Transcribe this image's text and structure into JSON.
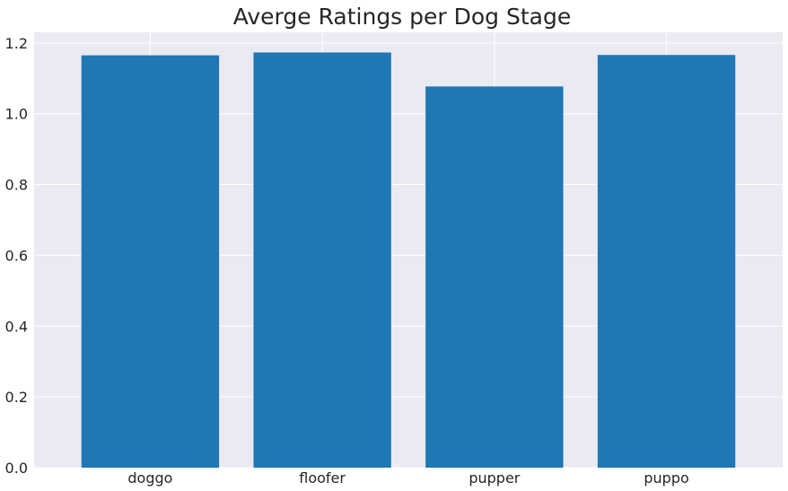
{
  "chart_data": {
    "type": "bar",
    "title": "Averge Ratings per Dog Stage",
    "xlabel": "",
    "ylabel": "",
    "categories": [
      "doggo",
      "floofer",
      "pupper",
      "puppo"
    ],
    "values": [
      1.165,
      1.173,
      1.077,
      1.166
    ],
    "ylim": [
      0,
      1.23
    ],
    "yticks": [
      "0.0",
      "0.2",
      "0.4",
      "0.6",
      "0.8",
      "1.0",
      "1.2"
    ],
    "ytick_values": [
      0,
      0.2,
      0.4,
      0.6,
      0.8,
      1.0,
      1.2
    ],
    "grid": true,
    "bar_color": "#1f77b4",
    "background_color": "#eaeaf2",
    "grid_color": "#ffffff"
  }
}
